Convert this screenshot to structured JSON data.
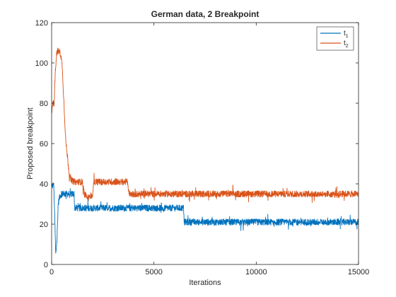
{
  "chart_data": {
    "type": "line",
    "title": "German data, 2 Breakpoint",
    "xlabel": "Iterations",
    "ylabel": "Proposed breakpoint",
    "xlim": [
      0,
      15000
    ],
    "ylim": [
      0,
      120
    ],
    "xticks": [
      "0",
      "5000",
      "10000",
      "15000"
    ],
    "yticks": [
      "0",
      "20",
      "40",
      "60",
      "80",
      "100",
      "120"
    ],
    "grid": false,
    "legend_position": "top-right",
    "series": [
      {
        "name": "t1",
        "name_base": "t",
        "name_sub": "1",
        "color": "#0072BD",
        "points": [
          [
            0,
            38
          ],
          [
            100,
            40
          ],
          [
            150,
            25
          ],
          [
            200,
            5
          ],
          [
            260,
            12
          ],
          [
            320,
            30
          ],
          [
            400,
            34
          ],
          [
            500,
            35
          ],
          [
            700,
            35
          ],
          [
            900,
            35
          ],
          [
            1100,
            35
          ],
          [
            1120,
            28
          ],
          [
            2000,
            28
          ],
          [
            3000,
            28
          ],
          [
            4000,
            28
          ],
          [
            5000,
            28
          ],
          [
            6000,
            28
          ],
          [
            6450,
            28
          ],
          [
            6480,
            21
          ],
          [
            8000,
            21
          ],
          [
            10000,
            21
          ],
          [
            12000,
            21
          ],
          [
            14000,
            21
          ],
          [
            15000,
            21
          ]
        ]
      },
      {
        "name": "t2",
        "name_base": "t",
        "name_sub": "2",
        "color": "#D95319",
        "points": [
          [
            0,
            75
          ],
          [
            60,
            80
          ],
          [
            120,
            80
          ],
          [
            180,
            95
          ],
          [
            250,
            105
          ],
          [
            350,
            106
          ],
          [
            450,
            104
          ],
          [
            520,
            98
          ],
          [
            580,
            85
          ],
          [
            640,
            72
          ],
          [
            700,
            60
          ],
          [
            780,
            53
          ],
          [
            860,
            45
          ],
          [
            950,
            42
          ],
          [
            1100,
            41
          ],
          [
            1500,
            41
          ],
          [
            1600,
            35
          ],
          [
            1700,
            34
          ],
          [
            2000,
            34
          ],
          [
            2050,
            41
          ],
          [
            2500,
            41
          ],
          [
            3000,
            41
          ],
          [
            3700,
            41
          ],
          [
            3800,
            35
          ],
          [
            5000,
            35
          ],
          [
            7000,
            35
          ],
          [
            10000,
            35
          ],
          [
            12000,
            35
          ],
          [
            15000,
            35
          ]
        ]
      }
    ]
  }
}
